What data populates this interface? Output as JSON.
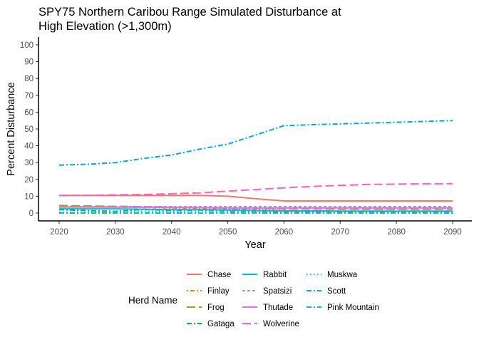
{
  "chart_data": {
    "type": "line",
    "title_lines": [
      "SPY75 Northern Caribou Range Simulated Disturbance at",
      "High Elevation (>1,300m)"
    ],
    "xlabel": "Year",
    "ylabel": "Percent Disturbance",
    "xlim": [
      2020,
      2090
    ],
    "ylim": [
      0,
      100
    ],
    "x_ticks": [
      2020,
      2030,
      2040,
      2050,
      2060,
      2070,
      2080,
      2090
    ],
    "y_ticks": [
      0,
      10,
      20,
      30,
      40,
      50,
      60,
      70,
      80,
      90,
      100
    ],
    "grid": false,
    "legend": {
      "title": "Herd Name",
      "position": "bottom"
    },
    "x": [
      2020,
      2025,
      2030,
      2035,
      2040,
      2045,
      2050,
      2055,
      2060,
      2065,
      2070,
      2075,
      2080,
      2085,
      2090
    ],
    "series": [
      {
        "name": "Chase",
        "color": "#F8766D",
        "dash": "solid",
        "values": [
          10.5,
          10.5,
          10.5,
          10.5,
          10.5,
          10.5,
          10,
          8.5,
          7.2,
          7.2,
          7.2,
          7.2,
          7.2,
          7.2,
          7.2
        ]
      },
      {
        "name": "Finlay",
        "color": "#D39200",
        "dash": "dotted-dash",
        "values": [
          4,
          3.8,
          3.5,
          3.3,
          3,
          2.8,
          2.5,
          2,
          1.5,
          1.2,
          1,
          1,
          1,
          1,
          1
        ]
      },
      {
        "name": "Frog",
        "color": "#93AA00",
        "dash": "long-dash",
        "values": [
          4.5,
          4.2,
          4,
          3.8,
          3.5,
          3.2,
          3,
          2.8,
          2.5,
          2.5,
          2.3,
          2.3,
          2.3,
          2.3,
          2.3
        ]
      },
      {
        "name": "Gataga",
        "color": "#00BA38",
        "dash": "dash-dot",
        "values": [
          2,
          1.5,
          1,
          2.2,
          1.5,
          1.8,
          1,
          1,
          0.8,
          0.6,
          0.5,
          0.5,
          0.5,
          0.5,
          0.5
        ]
      },
      {
        "name": "Muskwa",
        "color": "#00C19F",
        "dash": "dotted",
        "values": [
          0.5,
          0.5,
          0.8,
          1,
          0.8,
          1.2,
          1,
          0.8,
          0.6,
          0.5,
          0.4,
          0.4,
          0.4,
          0.4,
          0.4
        ]
      },
      {
        "name": "Pink Mountain",
        "color": "#00B9E3",
        "dash": "dash-dot",
        "values": [
          0,
          0,
          0,
          0,
          0,
          0,
          0,
          0,
          0,
          0,
          0,
          0,
          0,
          0,
          0
        ]
      },
      {
        "name": "Rabbit",
        "color": "#00B9E3",
        "dash": "solid",
        "values": [
          2.5,
          2.5,
          2.5,
          2.3,
          2,
          2,
          1.8,
          1.5,
          1.3,
          1.3,
          1.2,
          1.2,
          1.2,
          1.2,
          1.2
        ]
      },
      {
        "name": "Scott",
        "color": "#00A5E3",
        "dash": "dash-dot",
        "values": [
          28.5,
          29,
          30,
          32.5,
          34.5,
          38,
          41,
          46.5,
          52,
          52.5,
          53,
          53.5,
          54,
          54.5,
          55
        ]
      },
      {
        "name": "Spatsizi",
        "color": "#B385FF",
        "dash": "short-dash",
        "values": [
          3.8,
          3.8,
          3.8,
          3.8,
          3.8,
          3.8,
          3.8,
          3.8,
          3.8,
          3.8,
          3.8,
          3.8,
          3.8,
          3.8,
          3.8
        ]
      },
      {
        "name": "Thutade",
        "color": "#E76BF3",
        "dash": "solid",
        "values": [
          3.5,
          3.5,
          3.5,
          3.5,
          3.3,
          3.3,
          3.1,
          3,
          3,
          3,
          3,
          3,
          3,
          3,
          3
        ]
      },
      {
        "name": "Wolverine",
        "color": "#FF62BC",
        "dash": "long-dash",
        "values": [
          10.5,
          10.6,
          10.8,
          11,
          11.5,
          12,
          13,
          14,
          15,
          15.8,
          16.5,
          17,
          17.2,
          17.4,
          17.5
        ]
      }
    ],
    "legend_columns": [
      [
        "Chase",
        "Finlay",
        "Frog",
        "Gataga"
      ],
      [
        "Rabbit",
        "Spatsizi",
        "Thutade",
        "Wolverine"
      ],
      [
        "Muskwa",
        "Scott",
        "Pink Mountain"
      ]
    ]
  }
}
